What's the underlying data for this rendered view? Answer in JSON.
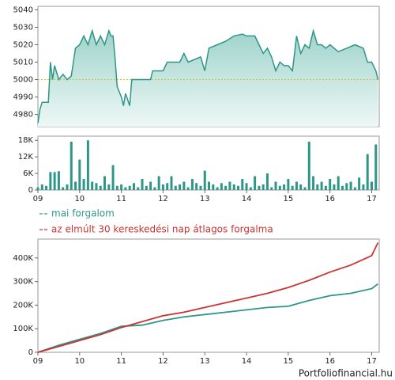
{
  "chart_data": [
    {
      "type": "area",
      "color": "#2e9688",
      "x": [
        9.0,
        9.05,
        9.1,
        9.25,
        9.3,
        9.35,
        9.4,
        9.5,
        9.6,
        9.7,
        9.8,
        9.85,
        9.9,
        10.0,
        10.1,
        10.2,
        10.3,
        10.4,
        10.5,
        10.6,
        10.7,
        10.75,
        10.8,
        10.85,
        10.9,
        11.0,
        11.05,
        11.1,
        11.2,
        11.25,
        11.5,
        11.7,
        11.75,
        12.0,
        12.1,
        12.4,
        12.5,
        12.6,
        12.9,
        13.0,
        13.1,
        13.3,
        13.5,
        13.7,
        13.9,
        14.0,
        14.2,
        14.3,
        14.4,
        14.5,
        14.6,
        14.7,
        14.8,
        14.9,
        15.0,
        15.1,
        15.2,
        15.3,
        15.4,
        15.5,
        15.6,
        15.7,
        15.8,
        15.9,
        16.0,
        16.2,
        16.4,
        16.6,
        16.8,
        16.9,
        17.0,
        17.1,
        17.15
      ],
      "values": [
        4975,
        4983,
        4987,
        4987,
        5010,
        5000,
        5008,
        5000,
        5003,
        5000,
        5002,
        5010,
        5018,
        5020,
        5025,
        5020,
        5028,
        5020,
        5025,
        5020,
        5028,
        5025,
        5025,
        5012,
        4996,
        4990,
        4985,
        4992,
        4985,
        5000,
        5000,
        5000,
        5005,
        5005,
        5010,
        5010,
        5015,
        5010,
        5013,
        5005,
        5018,
        5020,
        5022,
        5025,
        5026,
        5025,
        5025,
        5020,
        5015,
        5018,
        5013,
        5005,
        5010,
        5008,
        5008,
        5005,
        5025,
        5015,
        5020,
        5018,
        5028,
        5020,
        5020,
        5018,
        5020,
        5016,
        5018,
        5020,
        5018,
        5010,
        5010,
        5005,
        5000
      ],
      "reference_line": 5000,
      "reference_color": "#e0c020",
      "xlim": [
        9,
        17.18
      ],
      "ylim": [
        4973,
        5042
      ],
      "yticks": [
        4980,
        4990,
        5000,
        5010,
        5020,
        5030,
        5040
      ]
    },
    {
      "type": "bar",
      "color": "#2e9688",
      "x": [
        9.0,
        9.1,
        9.2,
        9.3,
        9.4,
        9.5,
        9.6,
        9.7,
        9.8,
        9.9,
        10.0,
        10.1,
        10.2,
        10.3,
        10.4,
        10.5,
        10.6,
        10.7,
        10.8,
        10.9,
        11.0,
        11.1,
        11.2,
        11.3,
        11.4,
        11.5,
        11.6,
        11.7,
        11.8,
        11.9,
        12.0,
        12.1,
        12.2,
        12.3,
        12.4,
        12.5,
        12.6,
        12.7,
        12.8,
        12.9,
        13.0,
        13.1,
        13.2,
        13.3,
        13.4,
        13.5,
        13.6,
        13.7,
        13.8,
        13.9,
        14.0,
        14.1,
        14.2,
        14.3,
        14.4,
        14.5,
        14.6,
        14.7,
        14.8,
        14.9,
        15.0,
        15.1,
        15.2,
        15.3,
        15.4,
        15.5,
        15.6,
        15.7,
        15.8,
        15.9,
        16.0,
        16.1,
        16.2,
        16.3,
        16.4,
        16.5,
        16.6,
        16.7,
        16.8,
        16.9,
        17.0,
        17.1
      ],
      "values": [
        1000,
        2000,
        1500,
        6500,
        6500,
        6800,
        1000,
        2000,
        17500,
        3000,
        11000,
        4000,
        18000,
        3000,
        2500,
        1500,
        5000,
        2000,
        9000,
        1500,
        2000,
        1000,
        1500,
        2500,
        1000,
        4000,
        1500,
        3000,
        1000,
        5000,
        2000,
        2500,
        5000,
        1500,
        2000,
        3000,
        1000,
        4000,
        2500,
        1500,
        7000,
        3000,
        2000,
        1000,
        2500,
        1500,
        3000,
        2000,
        1500,
        4000,
        2500,
        1000,
        5000,
        1500,
        2000,
        6000,
        1000,
        3000,
        1500,
        2000,
        4000,
        1500,
        3000,
        2000,
        1000,
        17500,
        5000,
        2000,
        3000,
        1500,
        4000,
        2000,
        5000,
        1500,
        2500,
        3000,
        1000,
        4500,
        2000,
        13000,
        3000,
        16500
      ],
      "xlim": [
        9,
        17.18
      ],
      "ylim": [
        0,
        19500
      ],
      "yticks": [
        0,
        {
          "value": 6000,
          "label": "6K"
        },
        {
          "value": 12000,
          "label": "12K"
        },
        {
          "value": 18000,
          "label": "18K"
        }
      ],
      "xticks": [
        {
          "value": 9,
          "label": "09"
        },
        10,
        11,
        12,
        13,
        14,
        15,
        16,
        17
      ]
    },
    {
      "type": "line",
      "x": [
        9.0,
        9.5,
        10.0,
        10.5,
        11.0,
        11.5,
        12.0,
        12.5,
        13.0,
        13.5,
        14.0,
        14.5,
        15.0,
        15.5,
        16.0,
        16.5,
        17.0,
        17.15
      ],
      "series": [
        {
          "name": "mai forgalom",
          "color": "#2e9688",
          "values": [
            0,
            30000,
            55000,
            80000,
            110000,
            115000,
            135000,
            150000,
            160000,
            170000,
            180000,
            190000,
            195000,
            220000,
            240000,
            250000,
            270000,
            290000
          ]
        },
        {
          "name": "az elmúlt 30 kereskedési nap átlagos forgalma",
          "color": "#cc3333",
          "values": [
            0,
            25000,
            50000,
            75000,
            105000,
            130000,
            155000,
            170000,
            190000,
            210000,
            230000,
            250000,
            275000,
            305000,
            340000,
            370000,
            410000,
            465000
          ]
        }
      ],
      "xlim": [
        9,
        17.18
      ],
      "ylim": [
        0,
        480000
      ],
      "yticks": [
        0,
        {
          "value": 100000,
          "label": "100K"
        },
        {
          "value": 200000,
          "label": "200K"
        },
        {
          "value": 300000,
          "label": "300K"
        },
        {
          "value": 400000,
          "label": "400K"
        }
      ],
      "xticks": [
        {
          "value": 9,
          "label": "09"
        },
        10,
        11,
        12,
        13,
        14,
        15,
        16,
        17
      ],
      "source": "Portfoliofinancial.hu"
    }
  ]
}
